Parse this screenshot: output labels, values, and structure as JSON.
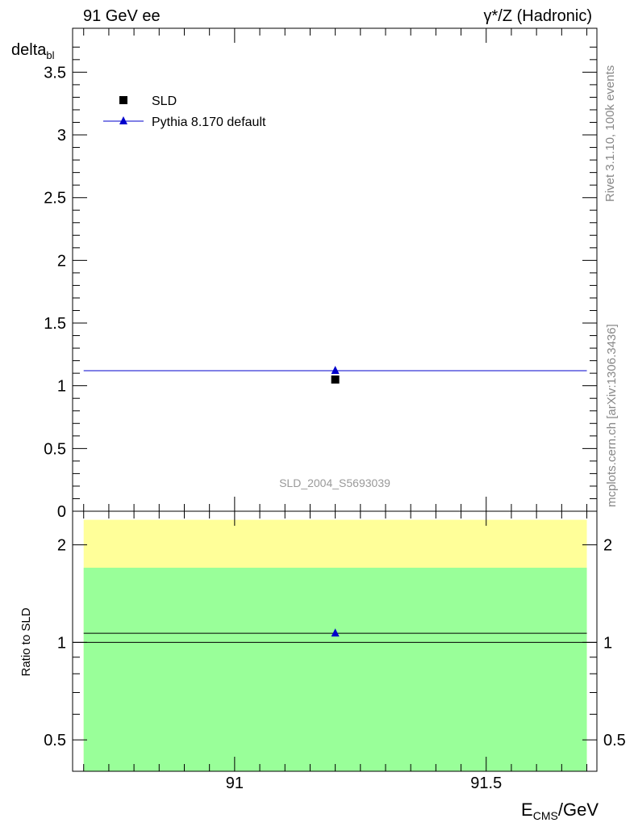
{
  "chart_data": {
    "type": "scatter",
    "title_left": "91 GeV ee",
    "title_right": "γ*/Z (Hadronic)",
    "ylabel": "delta",
    "ylabel_sub": "bl",
    "xlabel": "E",
    "xlabel_sub": "CMS",
    "xlabel_unit": "/GeV",
    "ratio_ylabel": "Ratio to SLD",
    "side_label_top": "Rivet 3.1.10,  100k events",
    "side_label_bottom": "mcplots.cern.ch [arXiv:1306.3436]",
    "analysis_id": "SLD_2004_S5693039",
    "xlim": [
      90.678,
      91.72
    ],
    "ylim": [
      0,
      3.85
    ],
    "ratio_ylim": [
      0.4,
      2.54
    ],
    "x_ticks": [
      "91",
      "91.5"
    ],
    "y_ticks": [
      "0",
      "0.5",
      "1",
      "1.5",
      "2",
      "2.5",
      "3",
      "3.5"
    ],
    "ratio_ticks": [
      "0.5",
      "1",
      "2"
    ],
    "legend": {
      "position": "top-left",
      "entries": [
        "SLD",
        "Pythia 8.170 default"
      ]
    },
    "series": [
      {
        "name": "SLD",
        "marker": "square",
        "color": "#000000",
        "x": [
          91.2
        ],
        "y": [
          1.05
        ]
      },
      {
        "name": "Pythia 8.170 default",
        "marker": "triangle",
        "color": "#0000cc",
        "x": [
          91.2
        ],
        "y": [
          1.12
        ],
        "xrange": [
          90.7,
          91.7
        ]
      }
    ],
    "ratio": {
      "x": 91.2,
      "mc": 1.067,
      "mc_xrange": [
        90.7,
        91.7
      ],
      "band_yellow": [
        0.4,
        2.39
      ],
      "band_green": [
        0.4,
        1.7
      ],
      "yellow": "#ffff99",
      "green": "#99ff99"
    }
  }
}
